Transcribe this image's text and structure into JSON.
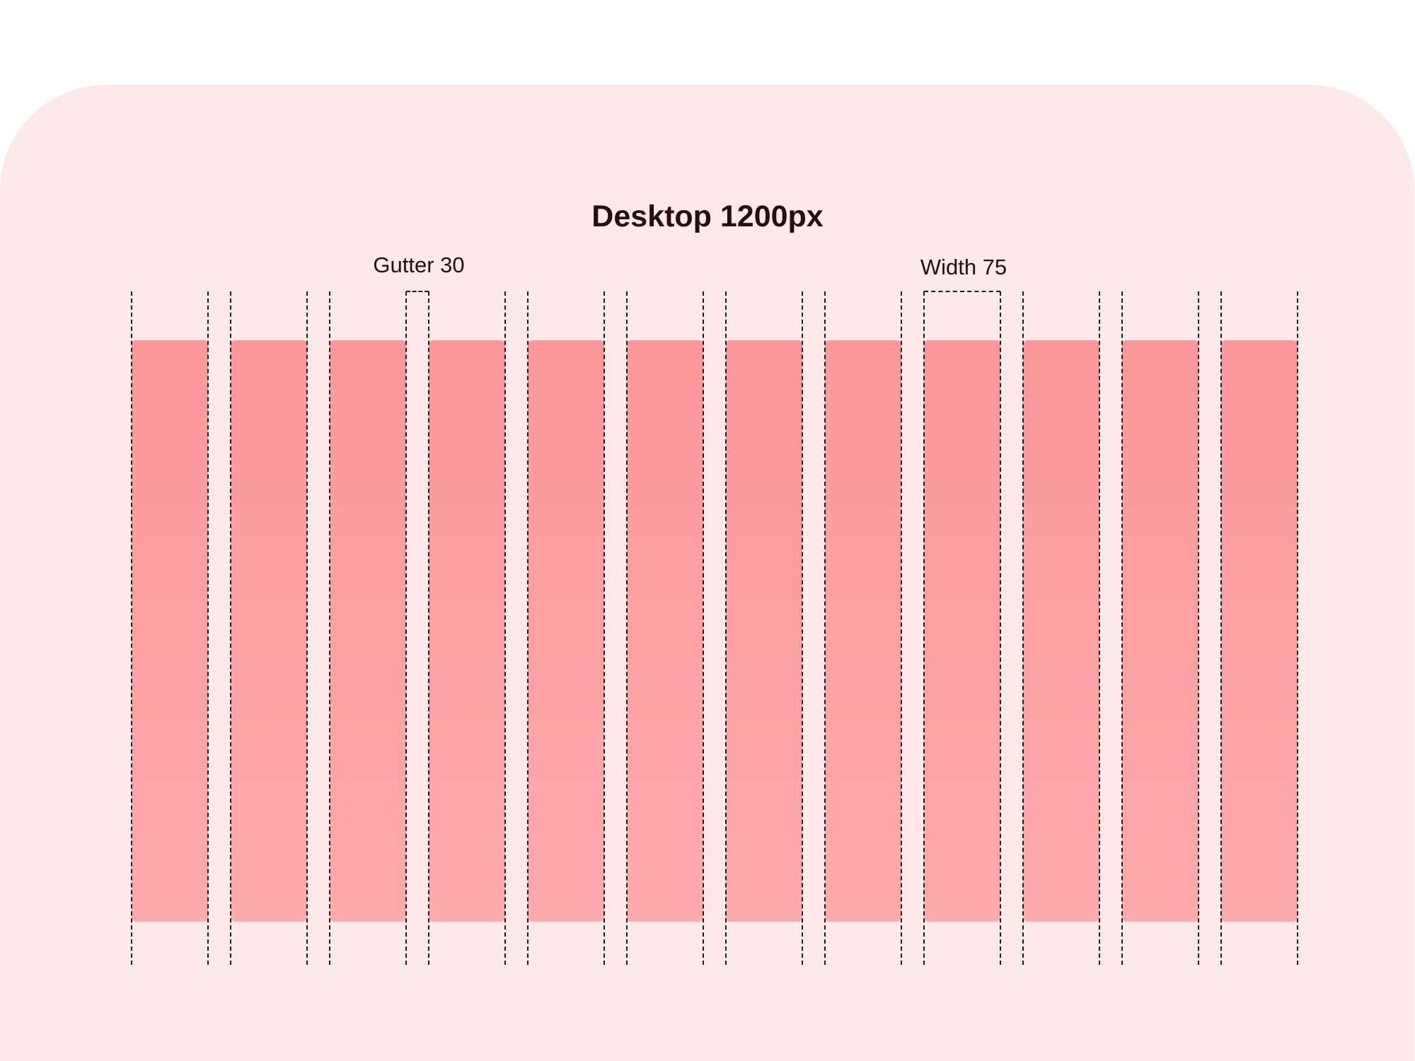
{
  "title": "Desktop 1200px",
  "gutter_label": "Gutter 30",
  "width_label": "Width 75",
  "grid": {
    "columns": 12,
    "column_width": 75,
    "gutter": 30
  },
  "colors": {
    "panel": "#fde9ea",
    "column_top": "#fd979a",
    "column_bottom": "#fdaaab",
    "guide": "#1c1c1c",
    "text": "#2a0c10"
  }
}
